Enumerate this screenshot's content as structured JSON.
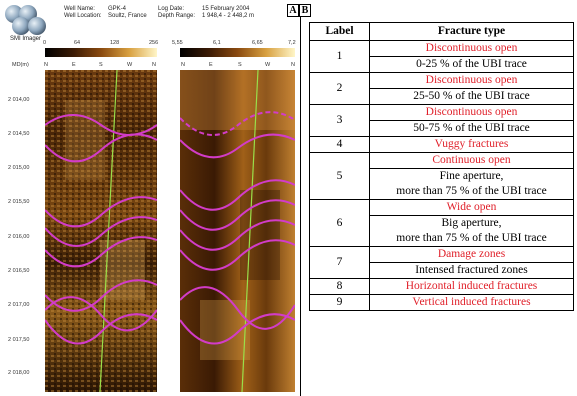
{
  "imager": {
    "logo_label": "SMI Imager"
  },
  "log_header": {
    "well_name_label": "Well Name:",
    "well_name": "GPK-4",
    "well_location_label": "Well Location:",
    "well_location": "Soultz, France",
    "log_date_label": "Log Date:",
    "log_date": "15 February 2004",
    "depth_range_label": "Depth Range:",
    "depth_range": "1 948,4 - 2 448,2 m"
  },
  "track_a": {
    "scale": [
      "0",
      "64",
      "128",
      "256"
    ],
    "compass": [
      "N",
      "E",
      "S",
      "W",
      "N"
    ]
  },
  "track_b": {
    "scale": [
      "5,55",
      "6,1",
      "6,65",
      "7,2"
    ],
    "compass": [
      "N",
      "E",
      "S",
      "W",
      "N"
    ]
  },
  "depth_axis": {
    "label": "MD(m)",
    "ticks": [
      "2 014,00",
      "2 014,50",
      "2 015,00",
      "2 015,50",
      "2 016,00",
      "2 016,50",
      "2 017,00",
      "2 017,50",
      "2 018,00"
    ]
  },
  "panel_labels": {
    "a": "A",
    "b": "B"
  },
  "table": {
    "headers": {
      "label": "Label",
      "type": "Fracture type"
    },
    "rows": [
      {
        "label": "1",
        "type": "Discontinuous open",
        "desc": "0-25 % of the UBI trace"
      },
      {
        "label": "2",
        "type": "Discontinuous open",
        "desc": "25-50 % of the UBI trace"
      },
      {
        "label": "3",
        "type": "Discontinuous open",
        "desc": "50-75 % of the UBI trace"
      },
      {
        "label": "4",
        "type": "Vuggy fractures",
        "desc": ""
      },
      {
        "label": "5",
        "type": "Continuous open",
        "desc": "Fine aperture,",
        "desc2": "more than 75 % of the UBI trace"
      },
      {
        "label": "6",
        "type": "Wide open",
        "desc": "Big aperture,",
        "desc2": "more than 75 % of the UBI trace"
      },
      {
        "label": "7",
        "type": "Damage zones",
        "desc": "Intensed fractured zones"
      },
      {
        "label": "8",
        "type": "Horizontal induced fractures",
        "desc": ""
      },
      {
        "label": "9",
        "type": "Vertical induced fractures",
        "desc": ""
      }
    ]
  },
  "colors": {
    "red_text": "#e0202a",
    "sinusoid": "#d23cc8",
    "trace_line": "#9adf4a"
  }
}
